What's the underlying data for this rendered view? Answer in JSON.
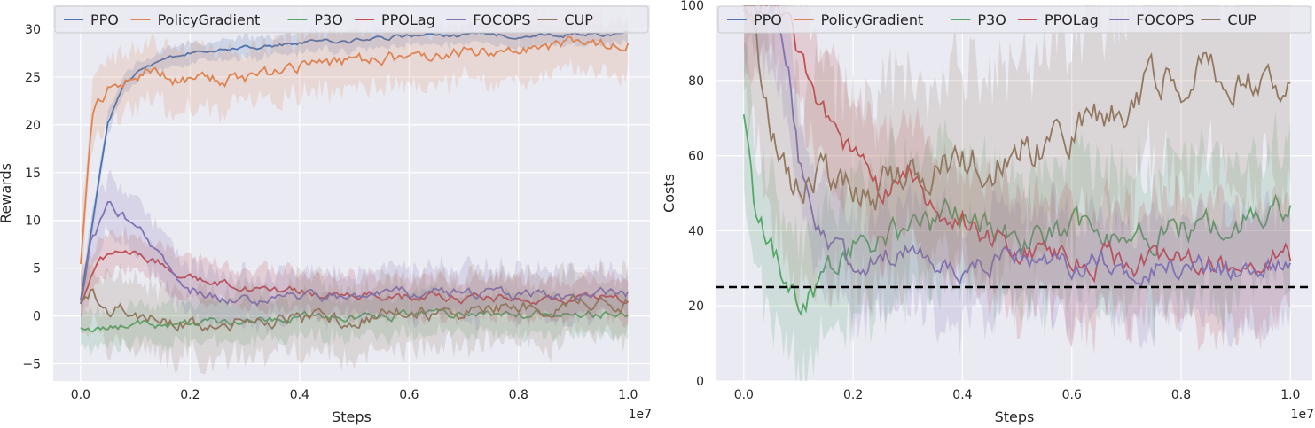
{
  "colors": {
    "PPO": "#4c72b0",
    "PolicyGradient": "#dd8452",
    "P3O": "#55a868",
    "PPOLag": "#c44e52",
    "FOCOPS": "#8172b3",
    "CUP": "#937860",
    "panel_bg": "#eaeaf2",
    "grid": "#ffffff",
    "threshold": "#000000"
  },
  "chart_data": [
    {
      "type": "line",
      "title": "",
      "xlabel": "Steps",
      "ylabel": "Rewards",
      "x_multiplier": "1e7",
      "xlim": [
        -0.05,
        1.04
      ],
      "ylim": [
        -6.8,
        32.5
      ],
      "xticks": [
        0.0,
        0.2,
        0.4,
        0.6,
        0.8,
        1.0
      ],
      "xtick_labels": [
        "0.0",
        "0.2",
        "0.4",
        "0.6",
        "0.8",
        "1.0"
      ],
      "yticks": [
        -5,
        0,
        5,
        10,
        15,
        20,
        25,
        30
      ],
      "ytick_labels": [
        "−5",
        "0",
        "5",
        "10",
        "15",
        "20",
        "25",
        "30"
      ],
      "grid": true,
      "legend": "top",
      "series": [
        {
          "name": "PPO",
          "x": [
            0.0,
            0.02,
            0.05,
            0.08,
            0.12,
            0.2,
            0.3,
            0.4,
            0.5,
            0.6,
            0.7,
            0.8,
            0.9,
            1.0
          ],
          "y": [
            1.5,
            9,
            20,
            24.5,
            26,
            27.5,
            28,
            28.6,
            28.8,
            29.3,
            29.3,
            29.4,
            29.5,
            29.5
          ],
          "band": 1.0
        },
        {
          "name": "PolicyGradient",
          "x": [
            0.0,
            0.02,
            0.05,
            0.08,
            0.12,
            0.15,
            0.2,
            0.25,
            0.3,
            0.35,
            0.4,
            0.5,
            0.6,
            0.7,
            0.8,
            0.9,
            1.0
          ],
          "y": [
            5.5,
            21,
            23.5,
            24.6,
            25.6,
            25,
            24.4,
            25,
            24.6,
            25.3,
            26,
            26.6,
            27,
            27.6,
            28,
            28.4,
            29
          ],
          "band": 3.0
        },
        {
          "name": "P3O",
          "x": [
            0.0,
            0.02,
            0.05,
            0.1,
            0.2,
            0.3,
            0.4,
            0.5,
            0.6,
            0.7,
            0.8,
            0.9,
            1.0
          ],
          "y": [
            -0.9,
            -1.6,
            -1.4,
            -0.9,
            -0.8,
            -0.4,
            -0.1,
            0.0,
            0.1,
            0.1,
            0.2,
            0.2,
            0.3
          ],
          "band": 2.0
        },
        {
          "name": "PPOLag",
          "x": [
            0.0,
            0.03,
            0.06,
            0.1,
            0.15,
            0.2,
            0.3,
            0.4,
            0.5,
            0.6,
            0.7,
            0.8,
            0.9,
            1.0
          ],
          "y": [
            1.2,
            5.5,
            7.0,
            6.5,
            5.5,
            4.0,
            3.0,
            2.5,
            2.2,
            2.0,
            1.9,
            1.8,
            1.8,
            1.7
          ],
          "band": 2.0
        },
        {
          "name": "FOCOPS",
          "x": [
            0.0,
            0.02,
            0.05,
            0.08,
            0.12,
            0.16,
            0.2,
            0.25,
            0.3,
            0.4,
            0.5,
            0.6,
            0.7,
            0.8,
            0.9,
            1.0
          ],
          "y": [
            1.5,
            8,
            11.5,
            10.5,
            8,
            5,
            3,
            2,
            1.5,
            1.9,
            2.2,
            2.3,
            2.3,
            2.3,
            2.3,
            2.3
          ],
          "band": 2.5
        },
        {
          "name": "CUP",
          "x": [
            0.0,
            0.02,
            0.05,
            0.1,
            0.2,
            0.3,
            0.4,
            0.5,
            0.6,
            0.7,
            0.8,
            0.9,
            1.0
          ],
          "y": [
            1.0,
            2.6,
            1.0,
            0.2,
            -0.8,
            -0.6,
            -0.4,
            -0.1,
            0.2,
            0.6,
            0.9,
            1.2,
            1.4
          ],
          "band": 3.5
        }
      ]
    },
    {
      "type": "line",
      "title": "",
      "xlabel": "Steps",
      "ylabel": "Costs",
      "x_multiplier": "1e7",
      "xlim": [
        -0.05,
        1.04
      ],
      "ylim": [
        0,
        100
      ],
      "xticks": [
        0.0,
        0.2,
        0.4,
        0.6,
        0.8,
        1.0
      ],
      "xtick_labels": [
        "0.0",
        "0.2",
        "0.4",
        "0.6",
        "0.8",
        "1.0"
      ],
      "yticks": [
        0,
        20,
        40,
        60,
        80,
        100
      ],
      "ytick_labels": [
        "0",
        "20",
        "40",
        "60",
        "80",
        "100"
      ],
      "grid": true,
      "legend": "top",
      "threshold": 25,
      "series": [
        {
          "name": "PPO",
          "x": [
            0.0,
            0.01,
            0.02
          ],
          "y": [
            100,
            100,
            100
          ],
          "band": 0
        },
        {
          "name": "PolicyGradient",
          "x": [
            0.0,
            0.01,
            0.02
          ],
          "y": [
            100,
            100,
            100
          ],
          "band": 0
        },
        {
          "name": "P3O",
          "x": [
            0.0,
            0.02,
            0.05,
            0.1,
            0.15,
            0.2,
            0.3,
            0.4,
            0.5,
            0.6,
            0.7,
            0.8,
            0.9,
            1.0
          ],
          "y": [
            68,
            45,
            35,
            22,
            28,
            35,
            40,
            44,
            38,
            40,
            36,
            40,
            42,
            48
          ],
          "band": 18
        },
        {
          "name": "PPOLag",
          "x": [
            0.0,
            0.05,
            0.08,
            0.1,
            0.15,
            0.2,
            0.25,
            0.3,
            0.35,
            0.4,
            0.5,
            0.6,
            0.7,
            0.8,
            0.9,
            1.0
          ],
          "y": [
            100,
            100,
            100,
            88,
            70,
            60,
            50,
            55,
            45,
            42,
            35,
            33,
            32,
            31,
            31,
            33
          ],
          "band": 15
        },
        {
          "name": "FOCOPS",
          "x": [
            0.0,
            0.05,
            0.08,
            0.1,
            0.15,
            0.2,
            0.3,
            0.4,
            0.5,
            0.6,
            0.7,
            0.8,
            0.9,
            1.0
          ],
          "y": [
            100,
            100,
            85,
            60,
            38,
            30,
            35,
            30,
            34,
            32,
            31,
            30,
            29,
            30
          ],
          "band": 14
        },
        {
          "name": "CUP",
          "x": [
            0.0,
            0.02,
            0.05,
            0.1,
            0.15,
            0.2,
            0.3,
            0.4,
            0.5,
            0.6,
            0.7,
            0.8,
            0.9,
            1.0
          ],
          "y": [
            100,
            90,
            70,
            52,
            55,
            48,
            55,
            58,
            60,
            68,
            75,
            82,
            80,
            76
          ],
          "band": 25
        }
      ]
    }
  ]
}
